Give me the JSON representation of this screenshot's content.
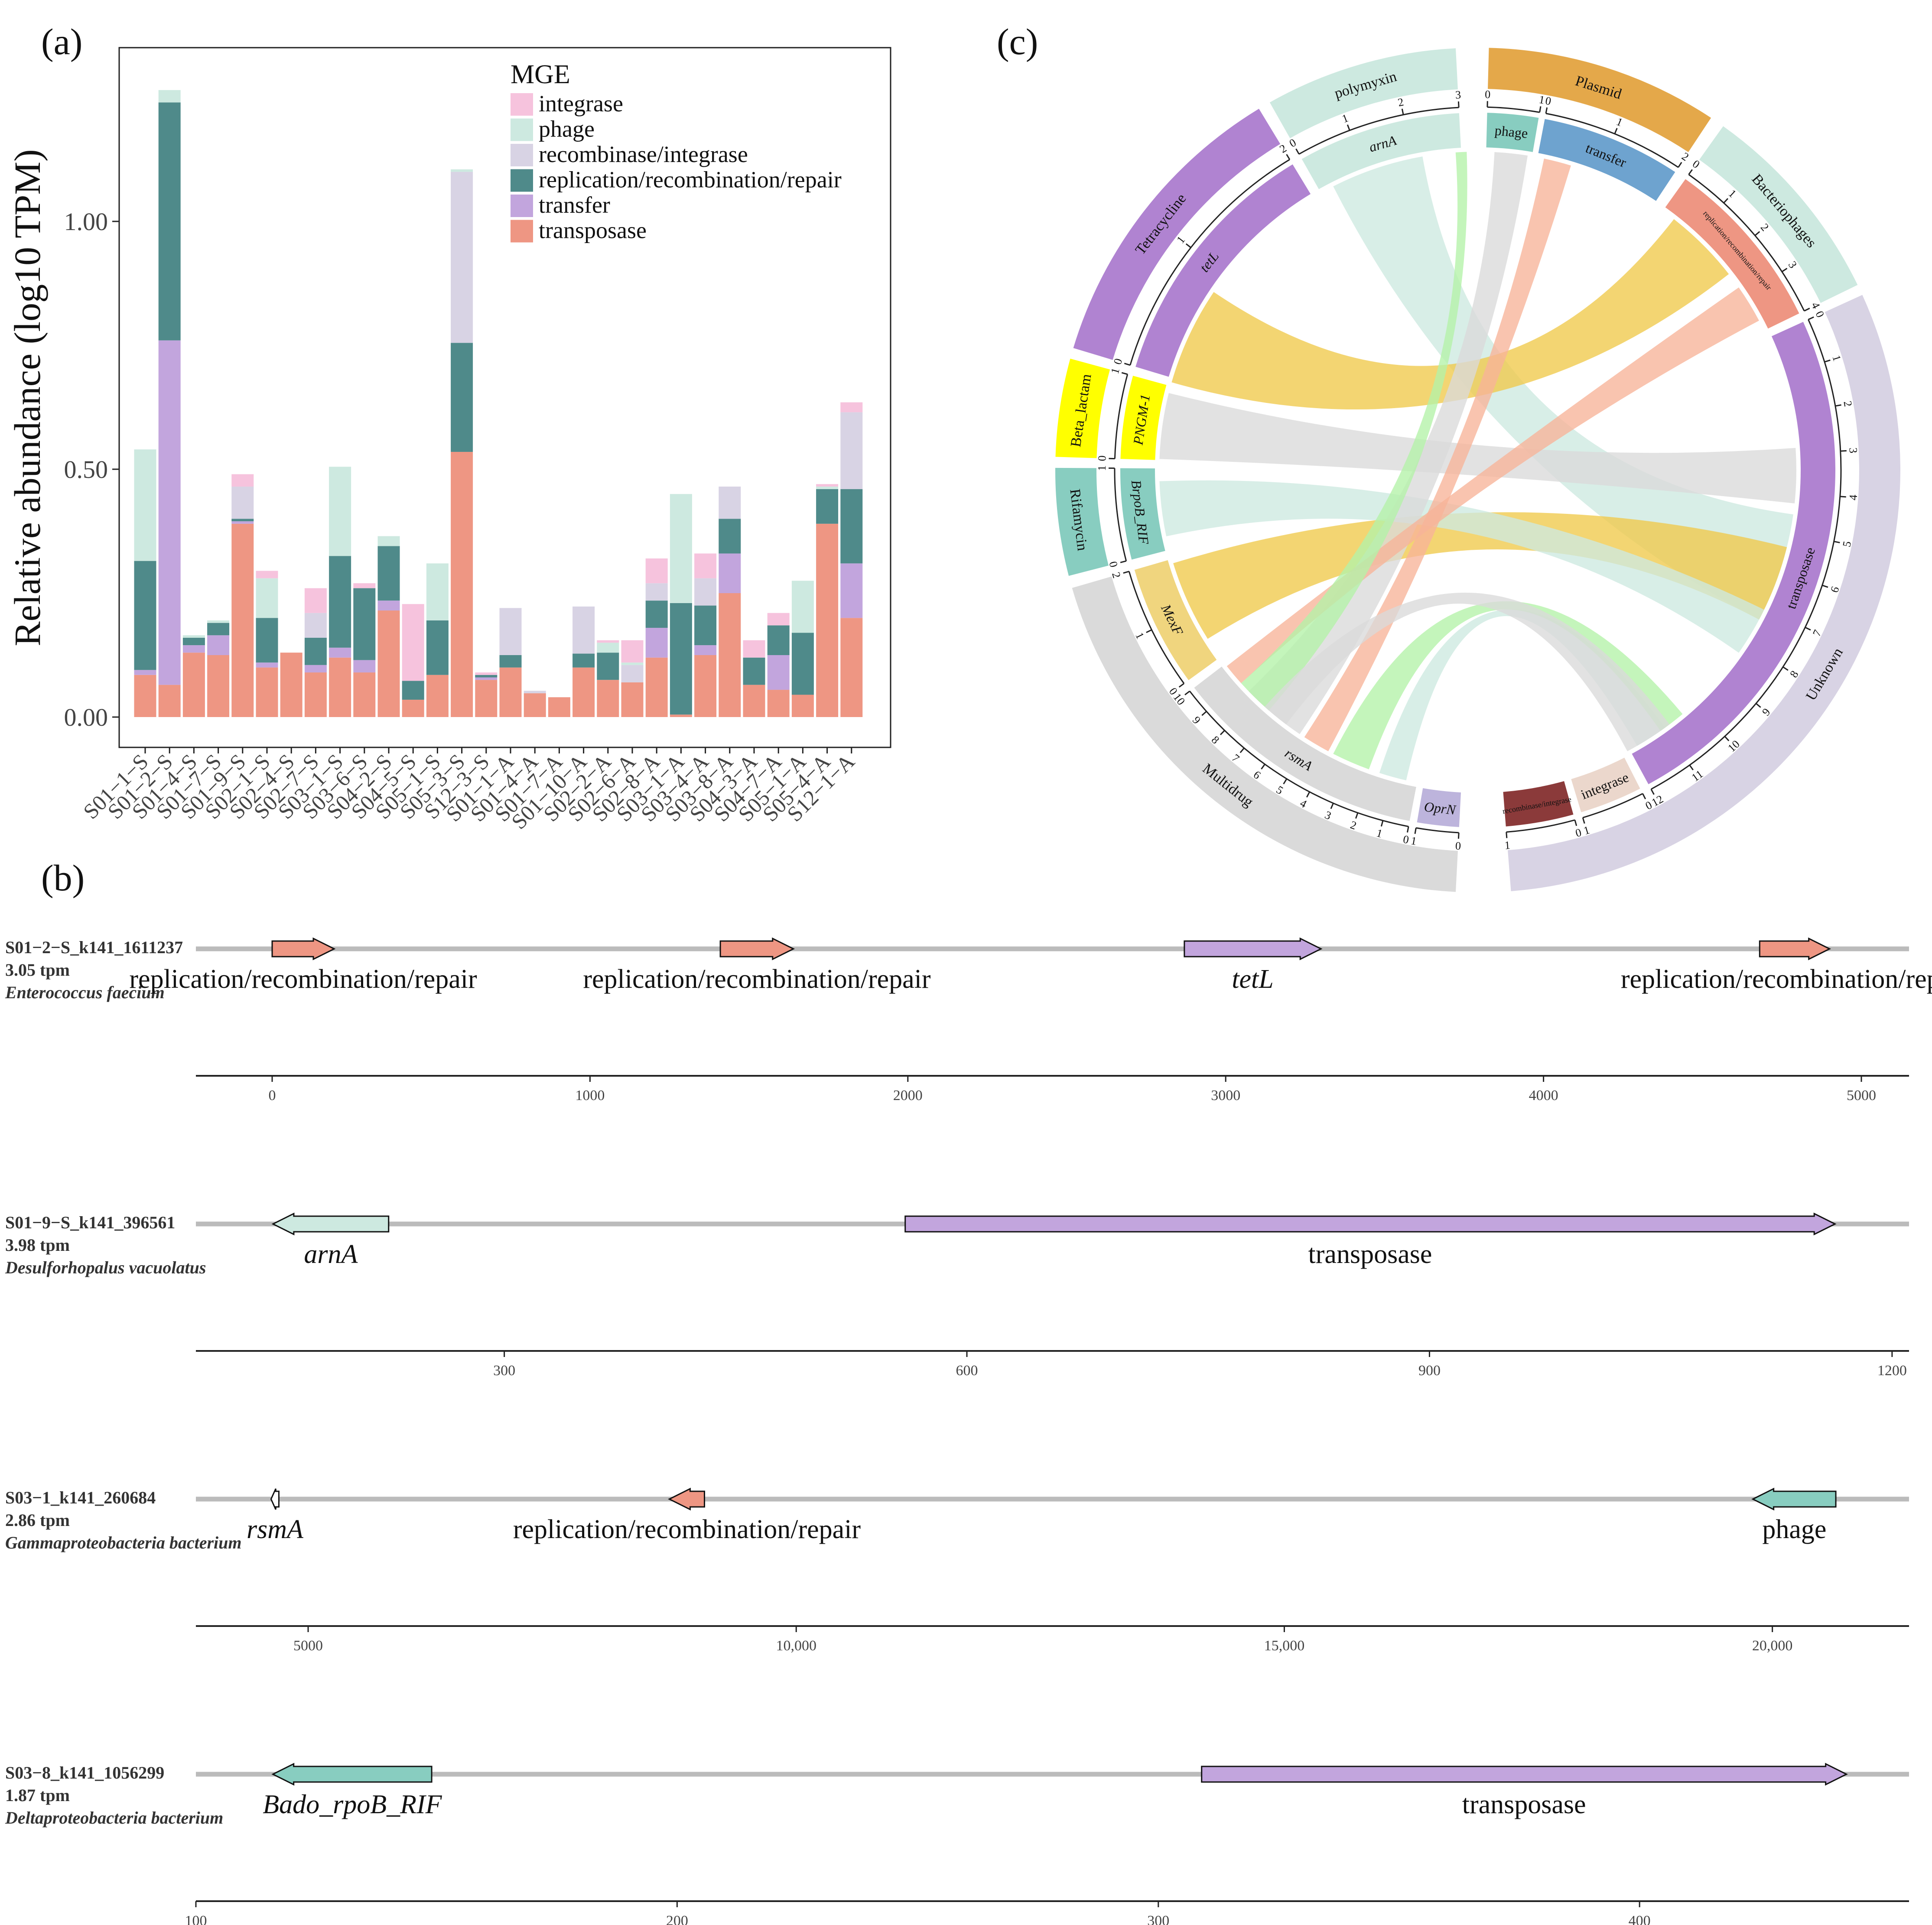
{
  "colors": {
    "integrase": "#F6C3DD",
    "phage": "#CDE9E0",
    "recombinase/integrase": "#D8D3E4",
    "replication/recombination/repair": "#4F8A8A",
    "transfer": "#C2A5DD",
    "transposase": "#EE9683",
    "axis": "#222222",
    "track": "#BBBBBB"
  },
  "chart_data": [
    {
      "panel": "(a)",
      "type": "bar",
      "stacked": true,
      "ylabel": "Relative abundance (log10 TPM)",
      "ylim": [
        0,
        1.3
      ],
      "yticks": [
        "0.00",
        "0.50",
        "1.00"
      ],
      "ytick_values": [
        0,
        0.5,
        1.0
      ],
      "legend_title": "MGE",
      "categories": [
        "S01−1−S",
        "S01−2−S",
        "S01−4−S",
        "S01−7−S",
        "S01−9−S",
        "S02−1−S",
        "S02−4−S",
        "S02−7−S",
        "S03−1−S",
        "S03−6−S",
        "S04−2−S",
        "S04−5−S",
        "S05−1−S",
        "S05−3−S",
        "S12−3−S",
        "S01−1−A",
        "S01−4−A",
        "S01−7−A",
        "S01−10−A",
        "S02−2−A",
        "S02−6−A",
        "S02−8−A",
        "S03−1−A",
        "S03−4−A",
        "S03−8−A",
        "S04−3−A",
        "S04−7−A",
        "S05−1−A",
        "S05−4−A",
        "S12−1−A"
      ],
      "series": [
        {
          "name": "transposase",
          "values": [
            0.085,
            0.065,
            0.13,
            0.125,
            0.39,
            0.1,
            0.13,
            0.09,
            0.12,
            0.09,
            0.215,
            0.035,
            0.085,
            0.535,
            0.075,
            0.1,
            0.048,
            0.04,
            0.1,
            0.075,
            0.07,
            0.12,
            0.005,
            0.125,
            0.25,
            0.065,
            0.055,
            0.045,
            0.39,
            0.2
          ]
        },
        {
          "name": "transfer",
          "values": [
            0.01,
            0.695,
            0.015,
            0.04,
            0.005,
            0.01,
            0.0,
            0.015,
            0.02,
            0.025,
            0.02,
            0.0,
            0.0,
            0.0,
            0.005,
            0.0,
            0.0,
            0.0,
            0.0,
            0.0,
            0.0,
            0.06,
            0.0,
            0.02,
            0.08,
            0.0,
            0.07,
            0.0,
            0.0,
            0.11
          ]
        },
        {
          "name": "replication/recombination/repair",
          "values": [
            0.22,
            0.48,
            0.015,
            0.025,
            0.005,
            0.09,
            0.0,
            0.055,
            0.185,
            0.145,
            0.11,
            0.038,
            0.11,
            0.22,
            0.005,
            0.025,
            0.0,
            0.0,
            0.028,
            0.055,
            0.0,
            0.055,
            0.225,
            0.08,
            0.07,
            0.055,
            0.06,
            0.125,
            0.07,
            0.15
          ]
        },
        {
          "name": "recombinase/integrase",
          "values": [
            0.0,
            0.0,
            0.0,
            0.0,
            0.065,
            0.0,
            0.0,
            0.05,
            0.0,
            0.0,
            0.0,
            0.0,
            0.0,
            0.345,
            0.0,
            0.095,
            0.005,
            0.0,
            0.095,
            0.0,
            0.035,
            0.035,
            0.0,
            0.055,
            0.065,
            0.0,
            0.0,
            0.0,
            0.0,
            0.155
          ]
        },
        {
          "name": "phage",
          "values": [
            0.225,
            0.025,
            0.005,
            0.005,
            0.0,
            0.08,
            0.0,
            0.0,
            0.18,
            0.0,
            0.02,
            0.0,
            0.115,
            0.005,
            0.0,
            0.0,
            0.0,
            0.0,
            0.0,
            0.02,
            0.005,
            0.0,
            0.22,
            0.0,
            0.0,
            0.0,
            0.0,
            0.105,
            0.005,
            0.0
          ]
        },
        {
          "name": "integrase",
          "values": [
            0.0,
            0.0,
            0.0,
            0.0,
            0.025,
            0.015,
            0.0,
            0.05,
            0.0,
            0.01,
            0.0,
            0.155,
            0.0,
            0.0,
            0.005,
            0.0,
            0.0,
            0.0,
            0.0,
            0.005,
            0.045,
            0.05,
            0.0,
            0.05,
            0.0,
            0.035,
            0.025,
            0.0,
            0.005,
            0.02
          ]
        }
      ]
    },
    {
      "panel": "(b)",
      "type": "gene-tracks",
      "tracks": [
        {
          "id": "S01−2−S_k141_1611237",
          "tpm": "3.05 tpm",
          "species": "Enterococcus faecium",
          "range": [
            -240,
            5150
          ],
          "ticks": [
            0,
            1000,
            2000,
            3000,
            4000,
            5000
          ],
          "tick_labels": [
            "0",
            "1000",
            "2000",
            "3000",
            "4000",
            "5000"
          ],
          "genes": [
            {
              "label": "replication/recombination/repair",
              "start": 0,
              "end": 195,
              "strand": "+",
              "class": "transposase",
              "italic": false
            },
            {
              "label": "replication/recombination/repair",
              "start": 1410,
              "end": 1640,
              "strand": "+",
              "class": "transposase",
              "italic": false
            },
            {
              "label": "tetL",
              "start": 2870,
              "end": 3300,
              "strand": "+",
              "class": "transfer",
              "italic": true
            },
            {
              "label": "replication/recombination/repair",
              "start": 4680,
              "end": 4900,
              "strand": "+",
              "class": "transposase",
              "italic": false
            }
          ]
        },
        {
          "id": "S01−9−S_k141_396561",
          "tpm": "3.98 tpm",
          "species": "Desulforhopalus vacuolatus",
          "range": [
            100,
            1211
          ],
          "ticks": [
            300,
            600,
            900,
            1200
          ],
          "tick_labels": [
            "300",
            "600",
            "900",
            "1200"
          ],
          "genes": [
            {
              "label": "arnA",
              "start": 150,
              "end": 225,
              "strand": "-",
              "class": "phage",
              "italic": true
            },
            {
              "label": "transposase",
              "start": 560,
              "end": 1163,
              "strand": "+",
              "class": "transfer",
              "italic": false
            }
          ]
        },
        {
          "id": "S03−1_k141_260684",
          "tpm": "2.86 tpm",
          "species": "Gammaproteobacteria bacterium",
          "range": [
            3850,
            21400
          ],
          "ticks": [
            5000,
            10000,
            15000,
            20000
          ],
          "tick_labels": [
            "5000",
            "10,000",
            "15,000",
            "20,000"
          ],
          "genes": [
            {
              "label": "rsmA",
              "start": 4620,
              "end": 4700,
              "strand": "-",
              "class": "blank",
              "italic": true
            },
            {
              "label": "replication/recombination/repair",
              "start": 8700,
              "end": 9060,
              "strand": "-",
              "class": "transposase",
              "italic": false
            },
            {
              "label": "phage",
              "start": 19800,
              "end": 20650,
              "strand": "-",
              "class": "teal",
              "italic": false
            }
          ]
        },
        {
          "id": "S03−8_k141_1056299",
          "tpm": "1.87 tpm",
          "species": "Deltaproteobacteria bacterium",
          "range": [
            100,
            456
          ],
          "ticks": [
            100,
            200,
            300,
            400
          ],
          "tick_labels": [
            "100",
            "200",
            "300",
            "400"
          ],
          "genes": [
            {
              "label": "Bado_rpoB_RIF",
              "start": 116,
              "end": 149,
              "strand": "-",
              "class": "teal",
              "italic": true
            },
            {
              "label": "transposase",
              "start": 309,
              "end": 443,
              "strand": "+",
              "class": "transfer",
              "italic": false
            }
          ]
        }
      ]
    },
    {
      "panel": "(c)",
      "type": "chord",
      "outer_groups": [
        {
          "label": "polymyxin",
          "color": "#CDE9E0",
          "a0": -29.5,
          "a1": -3.0
        },
        {
          "label": "Plasmid",
          "color": "#E4A84A",
          "a0": 1.5,
          "a1": 33.5
        },
        {
          "label": "Bacteriophages",
          "color": "#CDE9E0",
          "a0": 35.5,
          "a1": 64.0
        },
        {
          "label": "Unknown",
          "color": "#D8D3E4",
          "a0": 65.5,
          "a1": 175.5
        },
        {
          "label": "Multidrug",
          "color": "#DADADA",
          "a0": 183.0,
          "a1": 253.8
        },
        {
          "label": "Rifamycin",
          "color": "#88CDC0",
          "a0": 255.5,
          "a1": 270.3
        },
        {
          "label": "Beta_lactam",
          "color": "#FFFF00",
          "a0": 271.8,
          "a1": 285.3
        },
        {
          "label": "Tetracycline",
          "color": "#B083D1",
          "a0": 286.8,
          "a1": 328.8
        }
      ],
      "inner_sectors": [
        {
          "label": "arnA",
          "color": "#CDE9E0",
          "a0": -29.5,
          "a1": -3.0,
          "max": 3,
          "italic": true
        },
        {
          "label": "phage",
          "color": "#88CDC0",
          "a0": 1.5,
          "a1": 9.8,
          "max": 1,
          "italic": false
        },
        {
          "label": "transfer",
          "color": "#6EA3CF",
          "a0": 10.8,
          "a1": 33.5,
          "max": 2,
          "italic": false
        },
        {
          "label": "replication/recombination/repair",
          "color": "#EE9683",
          "a0": 35.5,
          "a1": 64.0,
          "max": 4,
          "italic": false
        },
        {
          "label": "transposase",
          "color": "#B083D1",
          "a0": 65.5,
          "a1": 151.5,
          "max": 12,
          "italic": false
        },
        {
          "label": "integrase",
          "color": "#EBD7CC",
          "a0": 153.0,
          "a1": 163.2,
          "max": 1,
          "italic": false
        },
        {
          "label": "recombinase/integrase",
          "color": "#8B3A3A",
          "a0": 164.5,
          "a1": 175.5,
          "max": 1,
          "italic": false
        },
        {
          "label": "OprN",
          "color": "#BDB4DC",
          "a0": 183.0,
          "a1": 189.8,
          "max": 1,
          "italic": true
        },
        {
          "label": "rsmA",
          "color": "#DADADA",
          "a0": 191.0,
          "a1": 232.5,
          "max": 10,
          "italic": true
        },
        {
          "label": "MexF",
          "color": "#F0D57E",
          "a0": 234.0,
          "a1": 253.8,
          "max": 2,
          "italic": true
        },
        {
          "label": "BrpoB_RIF",
          "color": "#88CDC0",
          "a0": 255.5,
          "a1": 270.3,
          "max": 1,
          "italic": true
        },
        {
          "label": "PNGM-1",
          "color": "#FFFF00",
          "a0": 271.8,
          "a1": 285.3,
          "max": 1,
          "italic": true
        },
        {
          "label": "tetL",
          "color": "#B083D1",
          "a0": 286.8,
          "a1": 328.8,
          "max": 2,
          "italic": true
        }
      ],
      "links": [
        {
          "from": [
            -27,
            -10
          ],
          "to": [
            98,
            118
          ],
          "color": "#CDE9E0"
        },
        {
          "from": [
            286,
            304
          ],
          "to": [
            38,
            52
          ],
          "color": "#F0C94A"
        },
        {
          "from": [
            238,
            253
          ],
          "to": [
            104,
            118
          ],
          "color": "#F0C94A"
        },
        {
          "from": [
            258,
            268
          ],
          "to": [
            116,
            125
          ],
          "color": "#CDE9E0"
        },
        {
          "from": [
            272,
            284
          ],
          "to": [
            86,
            96
          ],
          "color": "#DADADA"
        },
        {
          "from": [
            193,
            198
          ],
          "to": [
            144,
            150
          ],
          "color": "#CDE9E0"
        },
        {
          "from": [
            200,
            207
          ],
          "to": [
            140,
            145
          ],
          "color": "#B4F2A8"
        },
        {
          "from": [
            214,
            226
          ],
          "to": [
            3,
            9
          ],
          "color": "#DADADA"
        },
        {
          "from": [
            228,
            232
          ],
          "to": [
            55,
            62
          ],
          "color": "#F7B399"
        },
        {
          "from": [
            208,
            213
          ],
          "to": [
            12,
            17
          ],
          "color": "#F7B399"
        },
        {
          "from": [
            221,
            228
          ],
          "to": [
            -4,
            -2
          ],
          "color": "#B4F2A8"
        },
        {
          "from": [
            217,
            222
          ],
          "to": [
            143,
            152
          ],
          "color": "#DADADA"
        }
      ]
    }
  ]
}
